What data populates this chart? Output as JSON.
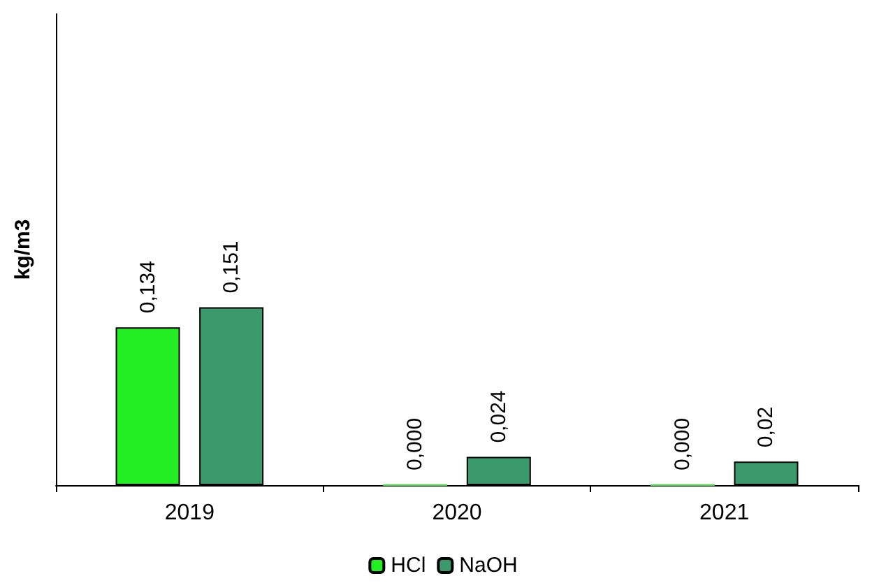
{
  "chart_data": {
    "type": "bar",
    "ylabel": "kg/m3",
    "categories": [
      "2019",
      "2020",
      "2021"
    ],
    "series": [
      {
        "name": "HCl",
        "color": "#22ee22",
        "values": [
          0.134,
          0.0,
          0.0
        ],
        "value_labels": [
          "0,134",
          "0,000",
          "0,000"
        ]
      },
      {
        "name": "NaOH",
        "color": "#3a9a6c",
        "values": [
          0.151,
          0.024,
          0.02
        ],
        "value_labels": [
          "0,151",
          "0,024",
          "0,02"
        ]
      }
    ],
    "ylim": [
      0,
      0.4
    ],
    "tick_labels": "x",
    "grid": false,
    "legend": "bottom"
  }
}
